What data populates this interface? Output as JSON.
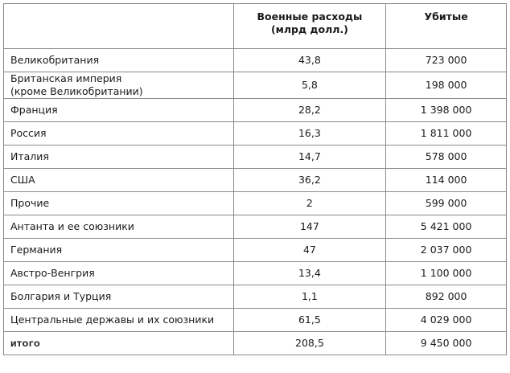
{
  "table": {
    "header": [
      "",
      "Военные расходы\n(млрд долл.)",
      "Убитые"
    ],
    "rows": [
      [
        "Великобритания",
        "43,8",
        "723 000"
      ],
      [
        "Британская империя\n(кроме Великобритании)",
        "5,8",
        "198 000"
      ],
      [
        "Франция",
        "28,2",
        "1 398 000"
      ],
      [
        "Россия",
        "16,3",
        "1 811 000"
      ],
      [
        "Италия",
        "14,7",
        "578 000"
      ],
      [
        "США",
        "36,2",
        "114 000"
      ],
      [
        "Прочие",
        "2",
        "599 000"
      ],
      [
        "Антанта и ее союзники",
        "147",
        "5 421 000"
      ],
      [
        "Германия",
        "47",
        "2 037 000"
      ],
      [
        "Австро-Венгрия",
        "13,4",
        "1 100 000"
      ],
      [
        "Болгария и Турция",
        "1,1",
        "892 000"
      ],
      [
        "Центральные державы и их союзники",
        "61,5",
        "4 029 000"
      ],
      [
        "итого",
        "208,5",
        "9 450 000"
      ]
    ]
  }
}
